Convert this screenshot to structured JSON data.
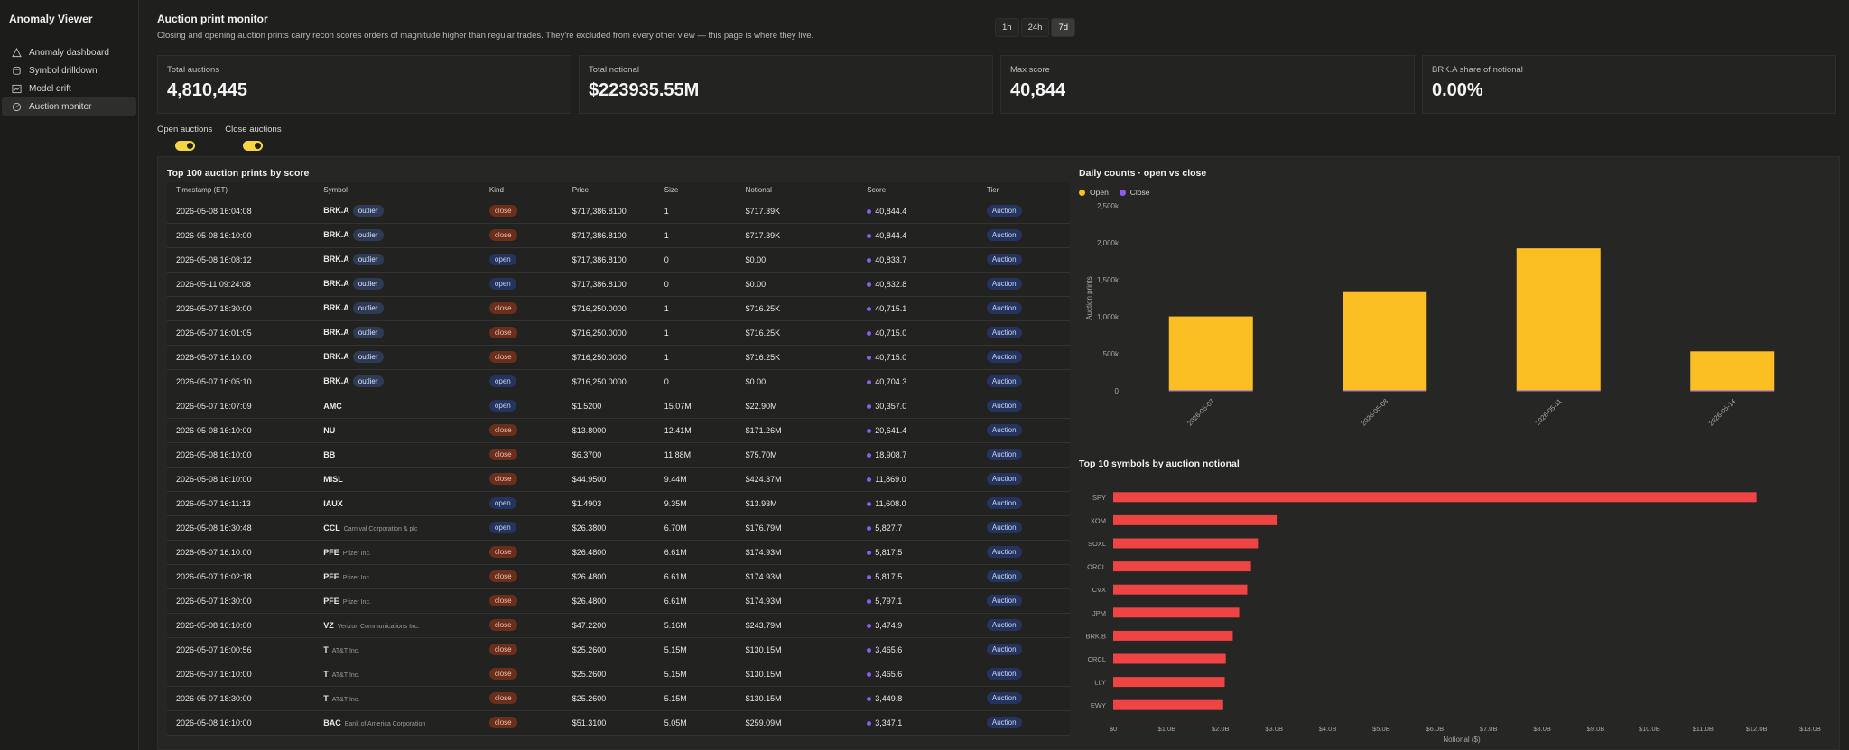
{
  "app": {
    "title": "Anomaly Viewer"
  },
  "sidebar": {
    "items": [
      {
        "label": "Anomaly dashboard",
        "icon": "alert-triangle-icon",
        "active": false
      },
      {
        "label": "Symbol drilldown",
        "icon": "database-icon",
        "active": false
      },
      {
        "label": "Model drift",
        "icon": "chart-icon",
        "active": false
      },
      {
        "label": "Auction monitor",
        "icon": "gauge-icon",
        "active": true
      }
    ]
  },
  "header": {
    "title": "Auction print monitor",
    "subtitle": "Closing and opening auction prints carry recon scores orders of magnitude higher than regular trades. They're excluded from every other view — this page is where they live."
  },
  "range": {
    "options": [
      "1h",
      "24h",
      "7d"
    ],
    "selected": "7d"
  },
  "kpis": [
    {
      "label": "Total auctions",
      "value": "4,810,445"
    },
    {
      "label": "Total notional",
      "value": "$223935.55M"
    },
    {
      "label": "Max score",
      "value": "40,844"
    },
    {
      "label": "BRK.A share of notional",
      "value": "0.00%"
    }
  ],
  "toggles": [
    {
      "label": "Open auctions",
      "on": true
    },
    {
      "label": "Close auctions",
      "on": true
    }
  ],
  "table": {
    "title": "Top 100 auction prints by score",
    "headers": [
      "Timestamp (ET)",
      "Symbol",
      "Kind",
      "Price",
      "Size",
      "Notional",
      "Score",
      "Tier"
    ],
    "rows": [
      {
        "ts": "2026-05-08 16:04:08",
        "sym": "BRK.A",
        "badge": "outlier",
        "name": "",
        "kind": "close",
        "price": "$717,386.8100",
        "size": "1",
        "notional": "$717.39K",
        "score": "40,844.4",
        "tier": "Auction"
      },
      {
        "ts": "2026-05-08 16:10:00",
        "sym": "BRK.A",
        "badge": "outlier",
        "name": "",
        "kind": "close",
        "price": "$717,386.8100",
        "size": "1",
        "notional": "$717.39K",
        "score": "40,844.4",
        "tier": "Auction"
      },
      {
        "ts": "2026-05-08 16:08:12",
        "sym": "BRK.A",
        "badge": "outlier",
        "name": "",
        "kind": "open",
        "price": "$717,386.8100",
        "size": "0",
        "notional": "$0.00",
        "score": "40,833.7",
        "tier": "Auction"
      },
      {
        "ts": "2026-05-11 09:24:08",
        "sym": "BRK.A",
        "badge": "outlier",
        "name": "",
        "kind": "open",
        "price": "$717,386.8100",
        "size": "0",
        "notional": "$0.00",
        "score": "40,832.8",
        "tier": "Auction"
      },
      {
        "ts": "2026-05-07 18:30:00",
        "sym": "BRK.A",
        "badge": "outlier",
        "name": "",
        "kind": "close",
        "price": "$716,250.0000",
        "size": "1",
        "notional": "$716.25K",
        "score": "40,715.1",
        "tier": "Auction"
      },
      {
        "ts": "2026-05-07 16:01:05",
        "sym": "BRK.A",
        "badge": "outlier",
        "name": "",
        "kind": "close",
        "price": "$716,250.0000",
        "size": "1",
        "notional": "$716.25K",
        "score": "40,715.0",
        "tier": "Auction"
      },
      {
        "ts": "2026-05-07 16:10:00",
        "sym": "BRK.A",
        "badge": "outlier",
        "name": "",
        "kind": "close",
        "price": "$716,250.0000",
        "size": "1",
        "notional": "$716.25K",
        "score": "40,715.0",
        "tier": "Auction"
      },
      {
        "ts": "2026-05-07 16:05:10",
        "sym": "BRK.A",
        "badge": "outlier",
        "name": "",
        "kind": "open",
        "price": "$716,250.0000",
        "size": "0",
        "notional": "$0.00",
        "score": "40,704.3",
        "tier": "Auction"
      },
      {
        "ts": "2026-05-07 16:07:09",
        "sym": "AMC",
        "badge": "",
        "name": "",
        "kind": "open",
        "price": "$1.5200",
        "size": "15.07M",
        "notional": "$22.90M",
        "score": "30,357.0",
        "tier": "Auction"
      },
      {
        "ts": "2026-05-08 16:10:00",
        "sym": "NU",
        "badge": "",
        "name": "",
        "kind": "close",
        "price": "$13.8000",
        "size": "12.41M",
        "notional": "$171.26M",
        "score": "20,641.4",
        "tier": "Auction"
      },
      {
        "ts": "2026-05-08 16:10:00",
        "sym": "BB",
        "badge": "",
        "name": "",
        "kind": "close",
        "price": "$6.3700",
        "size": "11.88M",
        "notional": "$75.70M",
        "score": "18,908.7",
        "tier": "Auction"
      },
      {
        "ts": "2026-05-08 16:10:00",
        "sym": "MISL",
        "badge": "",
        "name": "",
        "kind": "close",
        "price": "$44.9500",
        "size": "9.44M",
        "notional": "$424.37M",
        "score": "11,869.0",
        "tier": "Auction"
      },
      {
        "ts": "2026-05-07 16:11:13",
        "sym": "IAUX",
        "badge": "",
        "name": "",
        "kind": "open",
        "price": "$1.4903",
        "size": "9.35M",
        "notional": "$13.93M",
        "score": "11,608.0",
        "tier": "Auction"
      },
      {
        "ts": "2026-05-08 16:30:48",
        "sym": "CCL",
        "badge": "",
        "name": "Carnival Corporation & plc",
        "kind": "open",
        "price": "$26.3800",
        "size": "6.70M",
        "notional": "$176.79M",
        "score": "5,827.7",
        "tier": "Auction"
      },
      {
        "ts": "2026-05-07 16:10:00",
        "sym": "PFE",
        "badge": "",
        "name": "Pfizer Inc.",
        "kind": "close",
        "price": "$26.4800",
        "size": "6.61M",
        "notional": "$174.93M",
        "score": "5,817.5",
        "tier": "Auction"
      },
      {
        "ts": "2026-05-07 16:02:18",
        "sym": "PFE",
        "badge": "",
        "name": "Pfizer Inc.",
        "kind": "close",
        "price": "$26.4800",
        "size": "6.61M",
        "notional": "$174.93M",
        "score": "5,817.5",
        "tier": "Auction"
      },
      {
        "ts": "2026-05-07 18:30:00",
        "sym": "PFE",
        "badge": "",
        "name": "Pfizer Inc.",
        "kind": "close",
        "price": "$26.4800",
        "size": "6.61M",
        "notional": "$174.93M",
        "score": "5,797.1",
        "tier": "Auction"
      },
      {
        "ts": "2026-05-08 16:10:00",
        "sym": "VZ",
        "badge": "",
        "name": "Verizon Communications Inc.",
        "kind": "close",
        "price": "$47.2200",
        "size": "5.16M",
        "notional": "$243.79M",
        "score": "3,474.9",
        "tier": "Auction"
      },
      {
        "ts": "2026-05-07 16:00:56",
        "sym": "T",
        "badge": "",
        "name": "AT&T Inc.",
        "kind": "close",
        "price": "$25.2600",
        "size": "5.15M",
        "notional": "$130.15M",
        "score": "3,465.6",
        "tier": "Auction"
      },
      {
        "ts": "2026-05-07 16:10:00",
        "sym": "T",
        "badge": "",
        "name": "AT&T Inc.",
        "kind": "close",
        "price": "$25.2600",
        "size": "5.15M",
        "notional": "$130.15M",
        "score": "3,465.6",
        "tier": "Auction"
      },
      {
        "ts": "2026-05-07 18:30:00",
        "sym": "T",
        "badge": "",
        "name": "AT&T Inc.",
        "kind": "close",
        "price": "$25.2600",
        "size": "5.15M",
        "notional": "$130.15M",
        "score": "3,449.8",
        "tier": "Auction"
      },
      {
        "ts": "2026-05-08 16:10:00",
        "sym": "BAC",
        "badge": "",
        "name": "Bank of America Corporation",
        "kind": "close",
        "price": "$51.3100",
        "size": "5.05M",
        "notional": "$259.09M",
        "score": "3,347.1",
        "tier": "Auction"
      }
    ]
  },
  "chart_data": [
    {
      "type": "bar",
      "title": "Daily counts · open vs close",
      "categories": [
        "2026-05-07",
        "2026-05-08",
        "2026-05-11",
        "2026-05-14"
      ],
      "series": [
        {
          "name": "Open",
          "color": "#fbbf24",
          "values": [
            1000000,
            1340000,
            1920000,
            530000
          ]
        },
        {
          "name": "Close",
          "color": "#8b5cf6",
          "values": [
            5000,
            5000,
            5000,
            3000
          ]
        }
      ],
      "ylabel": "Auction prints",
      "ylim": [
        0,
        2500000
      ],
      "yticks": [
        "0",
        "500k",
        "1,000k",
        "1,500k",
        "2,000k",
        "2,500k"
      ],
      "legend": "top-left"
    },
    {
      "type": "bar",
      "orientation": "horizontal",
      "title": "Top 10 symbols by auction notional",
      "categories": [
        "SPY",
        "XOM",
        "SOXL",
        "ORCL",
        "CVX",
        "JPM",
        "BRK.B",
        "CRCL",
        "LLY",
        "EWY"
      ],
      "values": [
        12.0,
        3.05,
        2.7,
        2.57,
        2.5,
        2.35,
        2.23,
        2.1,
        2.08,
        2.05
      ],
      "color": "#ef4444",
      "xlabel": "Notional ($)",
      "xlim": [
        0,
        13
      ],
      "xticks": [
        "$0",
        "$1.0B",
        "$2.0B",
        "$3.0B",
        "$4.0B",
        "$5.0B",
        "$6.0B",
        "$7.0B",
        "$8.0B",
        "$9.0B",
        "$10.0B",
        "$11.0B",
        "$12.0B",
        "$13.0B"
      ]
    }
  ]
}
